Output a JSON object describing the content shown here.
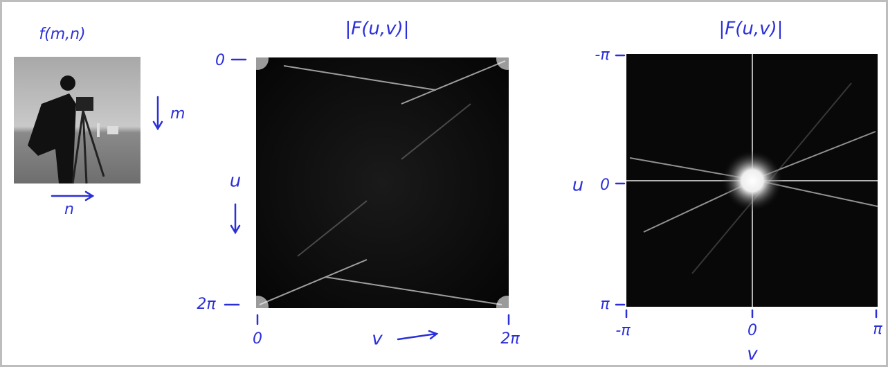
{
  "image_panel": {
    "label": "f(m,n)",
    "row_axis": "m",
    "col_axis": "n"
  },
  "unshifted_spectrum": {
    "title": "|F(u,v)|",
    "row_axis": "u",
    "col_axis": "v",
    "row_ticks": [
      "0",
      "2π"
    ],
    "col_ticks": [
      "0",
      "2π"
    ]
  },
  "centered_spectrum": {
    "title": "|F(u,v)|",
    "row_axis": "u",
    "col_axis": "v",
    "row_ticks": [
      "-π",
      "0",
      "π"
    ],
    "col_ticks": [
      "-π",
      "0",
      "π"
    ]
  }
}
